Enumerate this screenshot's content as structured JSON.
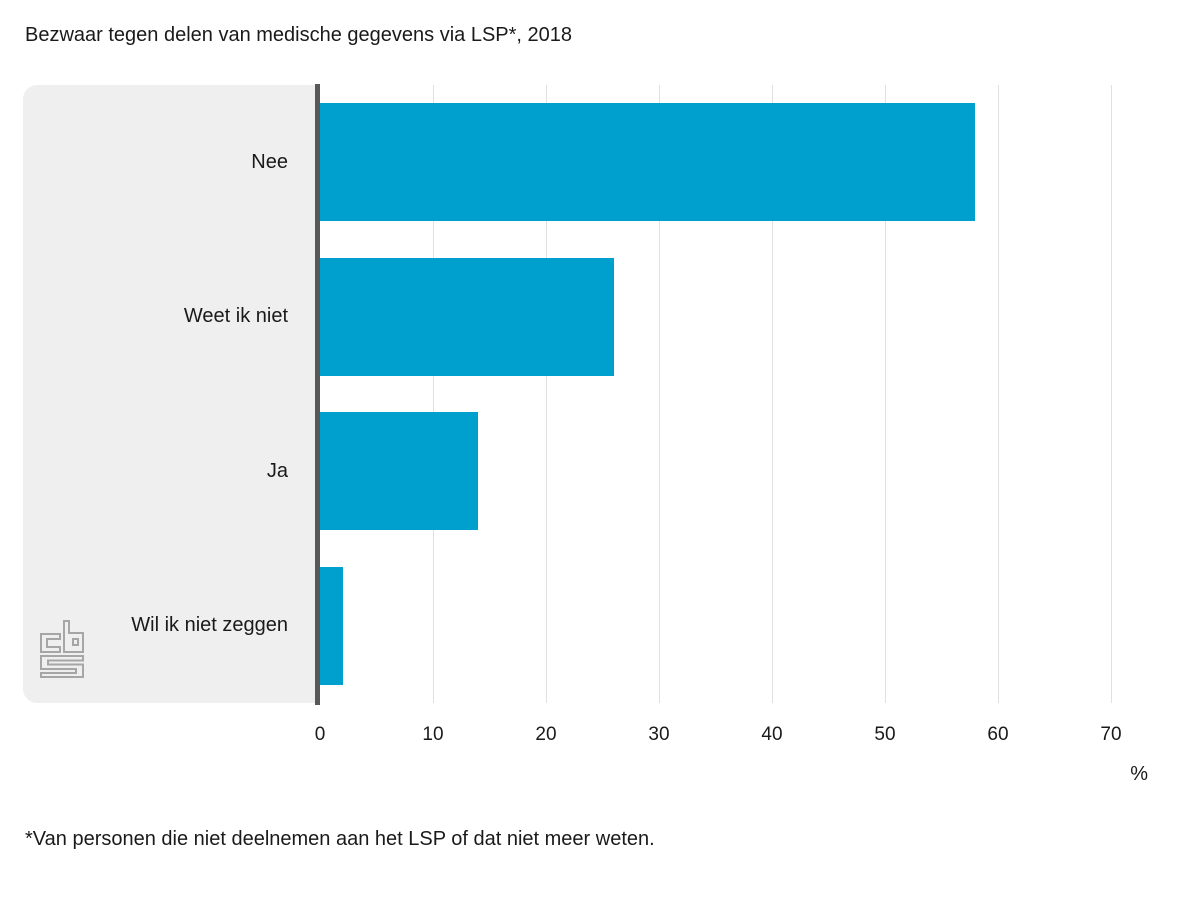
{
  "title": "Bezwaar tegen delen van medische gegevens via LSP*, 2018",
  "footnote": "*Van personen die niet deelnemen aan het LSP of dat niet meer weten.",
  "logo_name": "CBS",
  "chart_data": {
    "type": "bar",
    "orientation": "horizontal",
    "title": "Bezwaar tegen delen van medische gegevens via LSP*, 2018",
    "categories": [
      "Nee",
      "Weet ik niet",
      "Ja",
      "Wil ik niet zeggen"
    ],
    "values": [
      58,
      26,
      14,
      2
    ],
    "xlabel": "%",
    "ylabel": "",
    "xlim": [
      0,
      70
    ],
    "xticks": [
      0,
      10,
      20,
      30,
      40,
      50,
      60,
      70
    ],
    "grid": true,
    "legend": "none"
  },
  "colors": {
    "bar": "#00A0CE",
    "panel": "#efefef",
    "axis_line": "#58585a",
    "gridline": "#e0e0e0",
    "text": "#1a1a1a",
    "logo": "#a6a6a6"
  }
}
